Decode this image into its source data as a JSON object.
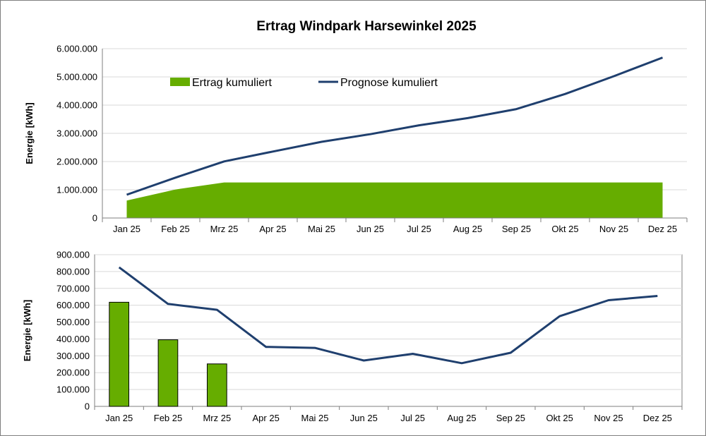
{
  "chart_data": [
    {
      "type": "area+line",
      "title": "Ertrag Windpark Harsewinkel 2025",
      "ylabel": "Energie [kWh]",
      "xlabel": "",
      "ylim": [
        0,
        6000000
      ],
      "yticks": [
        "0",
        "1.000.000",
        "2.000.000",
        "3.000.000",
        "4.000.000",
        "5.000.000",
        "6.000.000"
      ],
      "categories": [
        "Jan 25",
        "Feb 25",
        "Mrz 25",
        "Apr 25",
        "Mai 25",
        "Jun 25",
        "Jul 25",
        "Aug 25",
        "Sep 25",
        "Okt 25",
        "Nov 25",
        "Dez 25"
      ],
      "grid": true,
      "legend": "top-left-inside",
      "series": [
        {
          "name": "Ertrag kumuliert",
          "kind": "area",
          "color": "#66ad00",
          "values": [
            620000,
            1010000,
            1260000,
            1260000,
            1260000,
            1260000,
            1260000,
            1260000,
            1260000,
            1260000,
            1260000,
            1260000
          ]
        },
        {
          "name": "Prognose kumuliert",
          "kind": "line",
          "color": "#1f3f6e",
          "values": [
            825000,
            1430000,
            2005000,
            2355000,
            2700000,
            2970000,
            3285000,
            3540000,
            3860000,
            4395000,
            5025000,
            5685000
          ]
        }
      ]
    },
    {
      "type": "bar+line",
      "ylabel": "Energie [kWh]",
      "xlabel": "",
      "ylim": [
        0,
        900000
      ],
      "yticks": [
        "0",
        "100.000",
        "200.000",
        "300.000",
        "400.000",
        "500.000",
        "600.000",
        "700.000",
        "800.000",
        "900.000"
      ],
      "categories": [
        "Jan 25",
        "Feb 25",
        "Mrz 25",
        "Apr 25",
        "Mai 25",
        "Jun 25",
        "Jul 25",
        "Aug 25",
        "Sep 25",
        "Okt 25",
        "Nov 25",
        "Dez 25"
      ],
      "grid": true,
      "series": [
        {
          "kind": "bar",
          "color": "#66ad00",
          "values": [
            618000,
            395000,
            252000,
            null,
            null,
            null,
            null,
            null,
            null,
            null,
            null,
            null
          ]
        },
        {
          "kind": "line",
          "color": "#1f3f6e",
          "values": [
            825000,
            608000,
            573000,
            353000,
            347000,
            272000,
            312000,
            256000,
            318000,
            535000,
            630000,
            655000
          ]
        }
      ]
    }
  ]
}
